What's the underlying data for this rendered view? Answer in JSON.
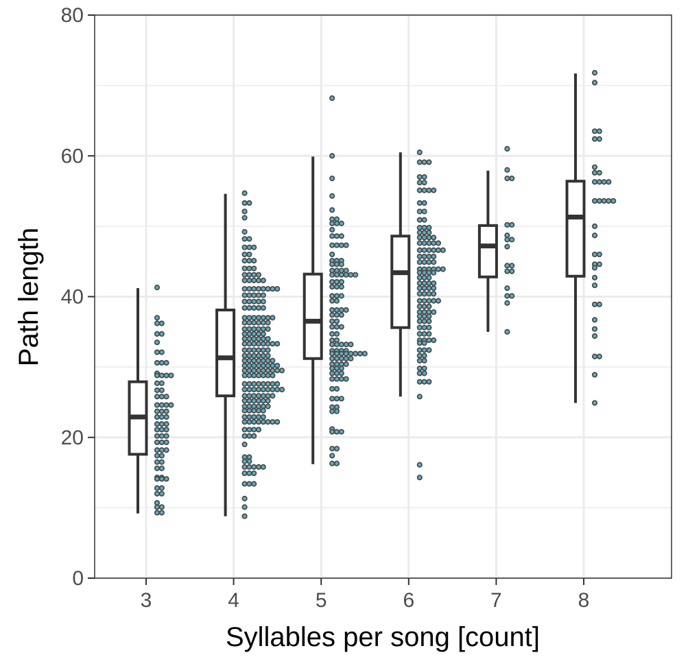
{
  "chart_data": {
    "type": "box-dotplot",
    "xlabel": "Syllables per song [count]",
    "ylabel": "Path length",
    "x_categories": [
      "3",
      "4",
      "5",
      "6",
      "7",
      "8"
    ],
    "ylim": [
      0,
      80
    ],
    "yticks": [
      "0",
      "20",
      "40",
      "60",
      "80"
    ],
    "grid": true,
    "legend": "none",
    "colors": {
      "dot_fill": "#5fb0c4",
      "dot_stroke": "#4a4a4a",
      "box_line": "#333333",
      "grid": "#ebebeb",
      "panel_border": "#333333"
    },
    "boxes": [
      {
        "category": "3",
        "whisker_low": 9.2,
        "q1": 17.6,
        "median": 22.9,
        "q3": 27.9,
        "whisker_high": 41.2
      },
      {
        "category": "4",
        "whisker_low": 8.8,
        "q1": 25.9,
        "median": 31.3,
        "q3": 38.1,
        "whisker_high": 54.6
      },
      {
        "category": "5",
        "whisker_low": 16.2,
        "q1": 31.2,
        "median": 36.5,
        "q3": 43.2,
        "whisker_high": 59.9
      },
      {
        "category": "6",
        "whisker_low": 25.8,
        "q1": 35.6,
        "median": 43.4,
        "q3": 48.6,
        "whisker_high": 60.5
      },
      {
        "category": "7",
        "whisker_low": 35.0,
        "q1": 42.8,
        "median": 47.2,
        "q3": 50.1,
        "whisker_high": 57.9
      },
      {
        "category": "8",
        "whisker_low": 24.9,
        "q1": 42.9,
        "median": 51.3,
        "q3": 56.4,
        "whisker_high": 71.7
      }
    ],
    "dot_bins": [
      {
        "category": "3",
        "bins": [
          [
            41.3,
            1
          ],
          [
            37.0,
            1
          ],
          [
            36.2,
            2
          ],
          [
            34.7,
            2
          ],
          [
            33.5,
            1
          ],
          [
            32.1,
            2
          ],
          [
            30.6,
            3
          ],
          [
            29.1,
            1
          ],
          [
            28.8,
            4
          ],
          [
            27.7,
            2
          ],
          [
            26.7,
            2
          ],
          [
            25.8,
            3
          ],
          [
            24.6,
            4
          ],
          [
            23.7,
            3
          ],
          [
            22.9,
            3
          ],
          [
            21.9,
            3
          ],
          [
            21.1,
            3
          ],
          [
            20.2,
            3
          ],
          [
            19.3,
            3
          ],
          [
            18.2,
            3
          ],
          [
            17.4,
            2
          ],
          [
            16.5,
            2
          ],
          [
            15.6,
            2
          ],
          [
            14.3,
            2
          ],
          [
            14.1,
            3
          ],
          [
            12.8,
            2
          ],
          [
            12.0,
            2
          ],
          [
            10.7,
            1
          ],
          [
            10.1,
            2
          ],
          [
            9.3,
            2
          ]
        ]
      },
      {
        "category": "4",
        "bins": [
          [
            54.7,
            1
          ],
          [
            53.3,
            2
          ],
          [
            52.1,
            1
          ],
          [
            51.2,
            1
          ],
          [
            49.2,
            1
          ],
          [
            48.2,
            2
          ],
          [
            47.0,
            3
          ],
          [
            46.0,
            2
          ],
          [
            45.1,
            3
          ],
          [
            44.0,
            3
          ],
          [
            43.1,
            4
          ],
          [
            42.3,
            5
          ],
          [
            41.1,
            8
          ],
          [
            40.2,
            5
          ],
          [
            39.3,
            5
          ],
          [
            38.4,
            5
          ],
          [
            37.0,
            7
          ],
          [
            36.3,
            6
          ],
          [
            35.4,
            6
          ],
          [
            34.7,
            5
          ],
          [
            34.0,
            6
          ],
          [
            33.3,
            8
          ],
          [
            32.4,
            6
          ],
          [
            31.6,
            6
          ],
          [
            30.9,
            7
          ],
          [
            30.2,
            8
          ],
          [
            29.5,
            9
          ],
          [
            28.8,
            7
          ],
          [
            27.6,
            8
          ],
          [
            26.8,
            9
          ],
          [
            25.9,
            7
          ],
          [
            25.2,
            6
          ],
          [
            24.4,
            6
          ],
          [
            23.8,
            5
          ],
          [
            22.9,
            5
          ],
          [
            22.2,
            8
          ],
          [
            21.1,
            4
          ],
          [
            20.2,
            3
          ],
          [
            19.0,
            1
          ],
          [
            17.2,
            2
          ],
          [
            16.6,
            2
          ],
          [
            15.8,
            5
          ],
          [
            14.9,
            3
          ],
          [
            13.4,
            3
          ],
          [
            11.3,
            1
          ],
          [
            10.1,
            1
          ],
          [
            8.8,
            1
          ]
        ]
      },
      {
        "category": "5",
        "bins": [
          [
            68.2,
            1
          ],
          [
            60.0,
            1
          ],
          [
            56.8,
            1
          ],
          [
            54.3,
            1
          ],
          [
            52.3,
            1
          ],
          [
            51.0,
            2
          ],
          [
            50.4,
            3
          ],
          [
            49.5,
            1
          ],
          [
            48.6,
            3
          ],
          [
            47.3,
            4
          ],
          [
            46.0,
            1
          ],
          [
            45.1,
            3
          ],
          [
            44.6,
            3
          ],
          [
            43.7,
            4
          ],
          [
            43.1,
            6
          ],
          [
            42.1,
            3
          ],
          [
            41.4,
            3
          ],
          [
            40.1,
            3
          ],
          [
            39.4,
            2
          ],
          [
            38.1,
            4
          ],
          [
            37.4,
            3
          ],
          [
            36.5,
            2
          ],
          [
            35.7,
            3
          ],
          [
            34.7,
            2
          ],
          [
            33.8,
            2
          ],
          [
            33.2,
            5
          ],
          [
            32.3,
            4
          ],
          [
            31.9,
            8
          ],
          [
            31.2,
            5
          ],
          [
            30.4,
            4
          ],
          [
            29.8,
            3
          ],
          [
            29.1,
            3
          ],
          [
            28.3,
            4
          ],
          [
            26.9,
            2
          ],
          [
            25.5,
            3
          ],
          [
            24.3,
            2
          ],
          [
            23.7,
            2
          ],
          [
            21.2,
            1
          ],
          [
            20.8,
            3
          ],
          [
            18.4,
            2
          ],
          [
            17.4,
            1
          ],
          [
            16.3,
            2
          ]
        ]
      },
      {
        "category": "6",
        "bins": [
          [
            60.5,
            1
          ],
          [
            59.1,
            3
          ],
          [
            57.0,
            2
          ],
          [
            56.2,
            2
          ],
          [
            55.1,
            4
          ],
          [
            53.3,
            2
          ],
          [
            52.1,
            2
          ],
          [
            50.9,
            2
          ],
          [
            49.8,
            3
          ],
          [
            49.1,
            3
          ],
          [
            48.4,
            4
          ],
          [
            47.6,
            5
          ],
          [
            46.6,
            6
          ],
          [
            45.7,
            4
          ],
          [
            44.9,
            4
          ],
          [
            43.9,
            6
          ],
          [
            43.4,
            4
          ],
          [
            42.7,
            3
          ],
          [
            41.9,
            4
          ],
          [
            41.2,
            4
          ],
          [
            40.4,
            4
          ],
          [
            39.4,
            5
          ],
          [
            38.6,
            3
          ],
          [
            37.8,
            4
          ],
          [
            37.2,
            3
          ],
          [
            36.5,
            3
          ],
          [
            35.6,
            3
          ],
          [
            34.7,
            3
          ],
          [
            33.8,
            4
          ],
          [
            33.4,
            2
          ],
          [
            32.4,
            3
          ],
          [
            31.6,
            2
          ],
          [
            30.9,
            2
          ],
          [
            29.8,
            2
          ],
          [
            29.1,
            2
          ],
          [
            27.9,
            3
          ],
          [
            25.8,
            1
          ],
          [
            16.1,
            1
          ],
          [
            14.3,
            1
          ]
        ]
      },
      {
        "category": "7",
        "bins": [
          [
            61.0,
            1
          ],
          [
            58.0,
            1
          ],
          [
            56.8,
            2
          ],
          [
            50.2,
            2
          ],
          [
            48.7,
            1
          ],
          [
            48.1,
            2
          ],
          [
            47.1,
            1
          ],
          [
            44.4,
            2
          ],
          [
            43.6,
            2
          ],
          [
            41.2,
            1
          ],
          [
            40.1,
            2
          ],
          [
            39.1,
            1
          ],
          [
            35.0,
            1
          ]
        ]
      },
      {
        "category": "8",
        "bins": [
          [
            71.8,
            1
          ],
          [
            70.4,
            1
          ],
          [
            63.5,
            2
          ],
          [
            62.4,
            2
          ],
          [
            58.4,
            1
          ],
          [
            57.6,
            2
          ],
          [
            56.3,
            4
          ],
          [
            53.6,
            5
          ],
          [
            50.0,
            1
          ],
          [
            48.7,
            1
          ],
          [
            46.0,
            2
          ],
          [
            44.6,
            2
          ],
          [
            44.1,
            1
          ],
          [
            42.7,
            1
          ],
          [
            41.6,
            1
          ],
          [
            38.9,
            2
          ],
          [
            36.7,
            1
          ],
          [
            35.4,
            1
          ],
          [
            34.4,
            1
          ],
          [
            31.5,
            2
          ],
          [
            28.9,
            1
          ],
          [
            24.9,
            1
          ]
        ]
      }
    ]
  }
}
